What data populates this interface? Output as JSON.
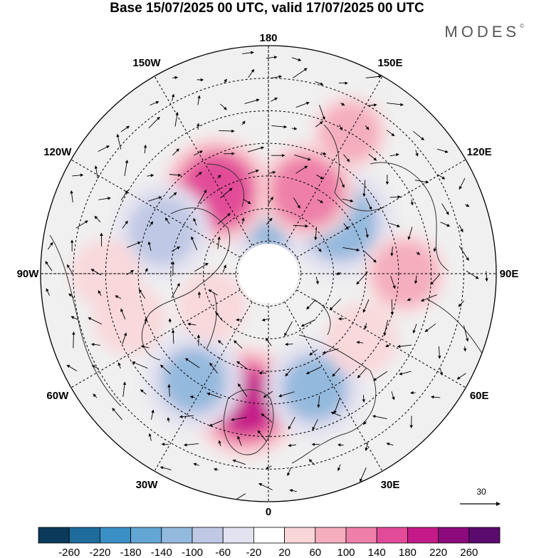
{
  "title": "Base 15/07/2025 00 UTC, valid 17/07/2025 00 UTC",
  "brand": "MODES",
  "brand_mark": "©",
  "meridian_labels": [
    {
      "text": "180",
      "lon": 180
    },
    {
      "text": "150E",
      "lon": 150
    },
    {
      "text": "120E",
      "lon": 120
    },
    {
      "text": "90E",
      "lon": 90
    },
    {
      "text": "60E",
      "lon": 60
    },
    {
      "text": "30E",
      "lon": 30
    },
    {
      "text": "0",
      "lon": 0
    },
    {
      "text": "30W",
      "lon": -30
    },
    {
      "text": "60W",
      "lon": -60
    },
    {
      "text": "90W",
      "lon": -90
    },
    {
      "text": "120W",
      "lon": -120
    },
    {
      "text": "150W",
      "lon": -150
    }
  ],
  "wind_reference": {
    "label": "30"
  },
  "colorbar": {
    "labels": [
      "-260",
      "-220",
      "-180",
      "-140",
      "-100",
      "-60",
      "-20",
      "20",
      "60",
      "100",
      "140",
      "180",
      "220",
      "260"
    ],
    "colors": [
      "#0b3a5a",
      "#1e6c9c",
      "#3a8fc4",
      "#63a6d3",
      "#93b9dd",
      "#bfc8e4",
      "#e3e2f0",
      "#ffffff",
      "#f9d6d8",
      "#f4aebd",
      "#ee7fa9",
      "#e24b98",
      "#c41a89",
      "#8d0a7d",
      "#5b0a6e"
    ]
  },
  "anomalies": [
    {
      "lat": 72,
      "lon": 178,
      "value": -150
    },
    {
      "lat": 63,
      "lon": 125,
      "value": -170
    },
    {
      "lat": 60,
      "lon": -148,
      "value": 170
    },
    {
      "lat": 55,
      "lon": -112,
      "value": -130
    },
    {
      "lat": 50,
      "lon": -10,
      "value": 180
    },
    {
      "lat": 52,
      "lon": 22,
      "value": -140
    },
    {
      "lat": 50,
      "lon": -35,
      "value": -140
    },
    {
      "lat": 62,
      "lon": 155,
      "value": 130
    },
    {
      "lat": 48,
      "lon": 90,
      "value": 80
    },
    {
      "lat": 40,
      "lon": -90,
      "value": 40
    },
    {
      "lat": 45,
      "lon": -72,
      "value": 50
    },
    {
      "lat": 55,
      "lon": 55,
      "value": 50
    },
    {
      "lat": 70,
      "lon": -60,
      "value": 40
    },
    {
      "lat": 40,
      "lon": 150,
      "value": 60
    }
  ]
}
